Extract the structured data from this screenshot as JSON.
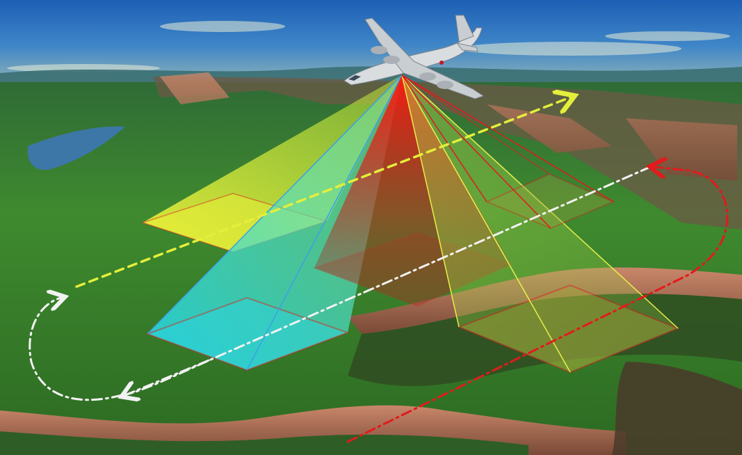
{
  "scene": {
    "description_free": true,
    "colors": {
      "sky_top": "#1f63b8",
      "sky_mid": "#4f93cf",
      "horizon_haze": "#c9c58a",
      "terrain_green": "#3f8a2f",
      "terrain_dark": "#2b5f24",
      "canyon_rock": "#b8735a",
      "canyon_shadow": "#5a3a2c",
      "river": "#3d77a8",
      "beam_yellow": "#e8f04a",
      "beam_red": "#e0241e",
      "beam_cyan": "#30d9d4",
      "path_yellow": "#e4ef3a",
      "path_white": "#f2f2f2",
      "path_red": "#e31a1c",
      "aircraft": "#d9dde0"
    }
  }
}
